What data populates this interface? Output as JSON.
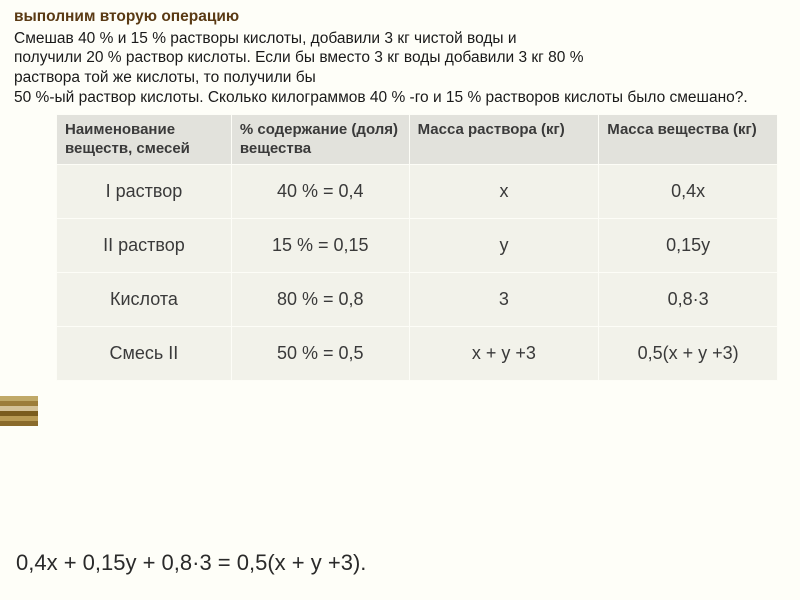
{
  "heading": "выполним вторую операцию",
  "problem_lines": [
    " Смешав 40 % и 15 % растворы кислоты, добавили 3 кг чистой воды и",
    "получили 20 % раствор кислоты. Если бы вместо 3 кг воды добавили 3 кг 80 %",
    " раствора той же кислоты, то получили бы",
    "50 %-ый раствор кислоты. Сколько килограммов 40 % -го и 15 % растворов кислоты было смешано?."
  ],
  "table": {
    "columns": [
      "Наименование веществ, смесей",
      "% содержание (доля) вещества",
      "Масса раствора (кг)",
      "Масса вещества (кг)"
    ],
    "col_widths": [
      "175px",
      "178px",
      "190px",
      "179px"
    ],
    "header_bg": "#e2e2dc",
    "cell_bg": "#f2f2ea",
    "rows": [
      [
        "I раствор",
        "40 % = 0,4",
        "x",
        "0,4x"
      ],
      [
        "II раствор",
        "15 % = 0,15",
        "y",
        "0,15y"
      ],
      [
        "Кислота",
        "80 % = 0,8",
        "3",
        "0,8·3"
      ],
      [
        "Смесь II",
        "50 % = 0,5",
        "x + y +3",
        "0,5(x + y +3)"
      ]
    ]
  },
  "equation": "0,4x + 0,15y + 0,8·3 = 0,5(x + y +3).",
  "stripes": [
    "#c0a968",
    "#9c7d3a",
    "#d4c298",
    "#7a5c1e",
    "#b89a54",
    "#8a6b2c"
  ],
  "colors": {
    "page_bg": "#fefef8",
    "heading_color": "#5a3a14",
    "text_color": "#1a1a1a"
  }
}
